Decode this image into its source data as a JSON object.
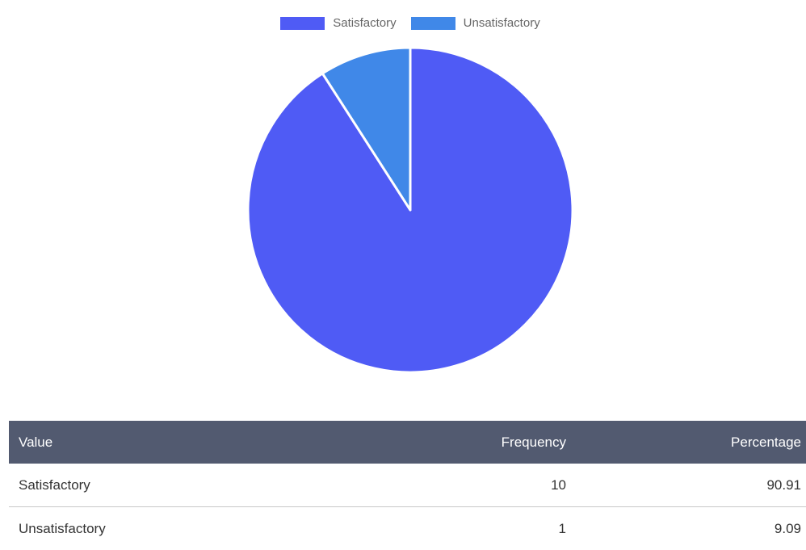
{
  "chart_data": {
    "type": "pie",
    "categories": [
      "Satisfactory",
      "Unsatisfactory"
    ],
    "values": [
      10,
      1
    ],
    "colors": [
      "#4f5bf5",
      "#4088e8"
    ],
    "legend_position": "top"
  },
  "table": {
    "headers": {
      "value": "Value",
      "frequency": "Frequency",
      "percentage": "Percentage"
    },
    "rows": [
      {
        "value": "Satisfactory",
        "frequency": "10",
        "percentage": "90.91"
      },
      {
        "value": "Unsatisfactory",
        "frequency": "1",
        "percentage": "9.09"
      }
    ]
  }
}
